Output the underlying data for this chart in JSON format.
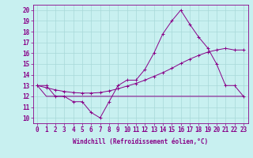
{
  "xlabel": "Windchill (Refroidissement éolien,°C)",
  "bg_color": "#c8f0f0",
  "line_color": "#880088",
  "grid_color": "#a8d8d8",
  "xlim": [
    -0.5,
    23.5
  ],
  "ylim": [
    9.5,
    20.5
  ],
  "xticks": [
    0,
    1,
    2,
    3,
    4,
    5,
    6,
    7,
    8,
    9,
    10,
    11,
    12,
    13,
    14,
    15,
    16,
    17,
    18,
    19,
    20,
    21,
    22,
    23
  ],
  "yticks": [
    10,
    11,
    12,
    13,
    14,
    15,
    16,
    17,
    18,
    19,
    20
  ],
  "windchill": [
    13,
    13,
    12,
    12,
    11.5,
    11.5,
    10.5,
    10,
    11.5,
    13,
    13.5,
    13.5,
    14.5,
    16,
    17.8,
    19,
    20,
    18.7,
    17.5,
    16.5,
    15,
    13,
    13,
    12
  ],
  "line_flat": [
    13,
    12,
    12,
    12,
    12,
    12,
    12,
    12,
    12,
    12,
    12,
    12,
    12,
    12,
    12,
    12,
    12,
    12,
    12,
    12,
    12,
    12,
    12,
    12
  ],
  "line_rise": [
    13,
    12.8,
    12.6,
    12.45,
    12.35,
    12.3,
    12.3,
    12.35,
    12.5,
    12.7,
    12.95,
    13.2,
    13.5,
    13.85,
    14.2,
    14.6,
    15.05,
    15.45,
    15.8,
    16.1,
    16.3,
    16.45,
    16.3,
    16.3
  ],
  "tick_fontsize": 5.5,
  "xlabel_fontsize": 5.5
}
